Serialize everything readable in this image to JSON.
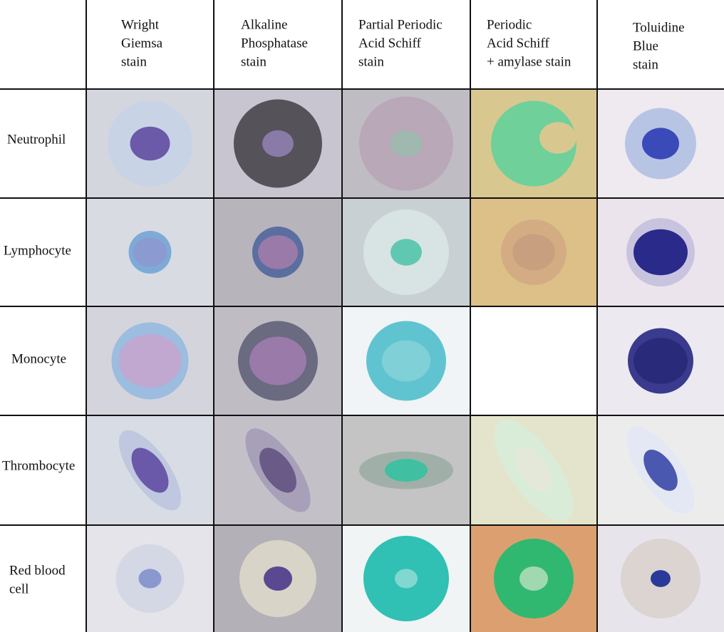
{
  "header": {
    "columns": [
      [
        "Wright",
        "Giemsa",
        "stain"
      ],
      [
        "Alkaline",
        "Phosphatase",
        "stain"
      ],
      [
        "Partial Periodic",
        "Acid Schiff",
        "stain"
      ],
      [
        "Periodic",
        "Acid Schiff",
        "+ amylase stain"
      ],
      [
        "Toluidine",
        "Blue",
        "stain"
      ]
    ]
  },
  "rows": [
    [
      "Neutrophil"
    ],
    [
      "Lymphocyte"
    ],
    [
      "Monocyte"
    ],
    [
      "Thrombocyte"
    ],
    [
      "Red blood",
      "cell"
    ]
  ]
}
